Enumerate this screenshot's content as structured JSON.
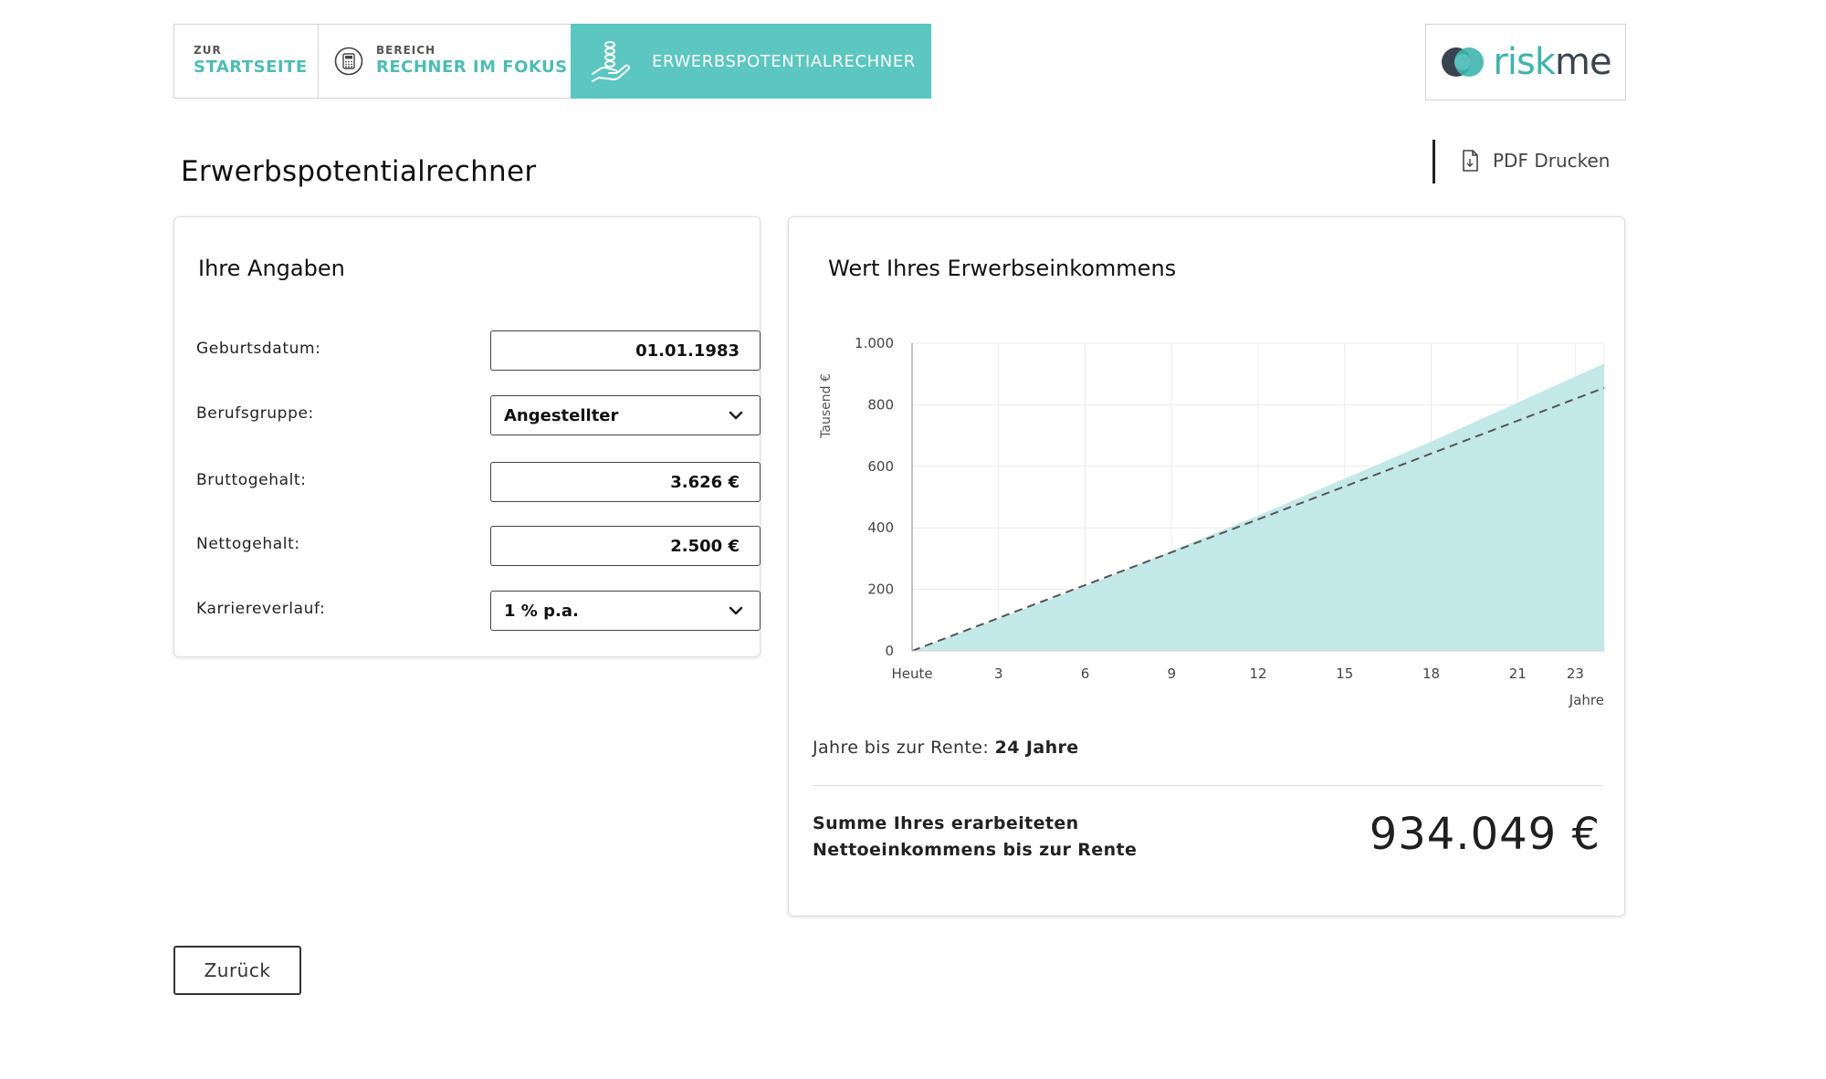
{
  "nav": {
    "home": {
      "small": "ZUR",
      "big": "STARTSEITE"
    },
    "area": {
      "small": "BEREICH",
      "big": "RECHNER IM FOKUS",
      "icon": "calculator-icon"
    },
    "active": {
      "label": "ERWERBSPOTENTIALRECHNER",
      "icon": "hand-coins-icon"
    }
  },
  "logo": {
    "risk": "risk",
    "me": "me",
    "icon": "riskine-logo-mark"
  },
  "page": {
    "title": "Erwerbspotentialrechner"
  },
  "print": {
    "label": "PDF Drucken",
    "icon": "document-icon"
  },
  "form": {
    "title": "Ihre Angaben",
    "birthdate": {
      "label": "Geburtsdatum:",
      "value": "01.01.1983"
    },
    "profession": {
      "label": "Berufsgruppe:",
      "value": "Angestellter"
    },
    "gross": {
      "label": "Bruttogehalt:",
      "value": "3.626 €"
    },
    "net": {
      "label": "Nettogehalt:",
      "value": "2.500 €"
    },
    "career": {
      "label": "Karriereverlauf:",
      "value": "1 % p.a."
    }
  },
  "result": {
    "title": "Wert Ihres Erwerbseinkommens",
    "years_label": "Jahre bis zur Rente:",
    "years_value": "24 Jahre",
    "sum_label": "Summe Ihres erarbeiteten Nettoeinkommens bis zur Rente",
    "sum_value": "934.049 €"
  },
  "chart_data": {
    "type": "area",
    "ylabel": "Tausend €",
    "xlabel": "Jahre",
    "x_tick_labels": [
      "Heute",
      "3",
      "6",
      "9",
      "12",
      "15",
      "18",
      "21",
      "23"
    ],
    "x_ticks": [
      0,
      3,
      6,
      9,
      12,
      15,
      18,
      21,
      23
    ],
    "y_ticks": [
      0,
      200,
      400,
      600,
      800,
      1000
    ],
    "y_tick_labels": [
      "0",
      "200",
      "400",
      "600",
      "800",
      "1.000"
    ],
    "xlim": [
      0,
      24
    ],
    "ylim": [
      0,
      1000
    ],
    "grid": true,
    "series": [
      {
        "style": "filled-area",
        "color": "#c2e9e7",
        "x": [
          0,
          6,
          12,
          18,
          24
        ],
        "y": [
          0,
          210,
          440,
          680,
          934
        ]
      },
      {
        "style": "dashed-line",
        "color": "#555555",
        "x": [
          0,
          24
        ],
        "y": [
          0,
          855
        ]
      }
    ]
  },
  "buttons": {
    "back": "Zurück"
  },
  "colors": {
    "accent": "#5cc6c0",
    "accent_text": "#4fbcb5",
    "area_fill": "#c2e9e7"
  }
}
